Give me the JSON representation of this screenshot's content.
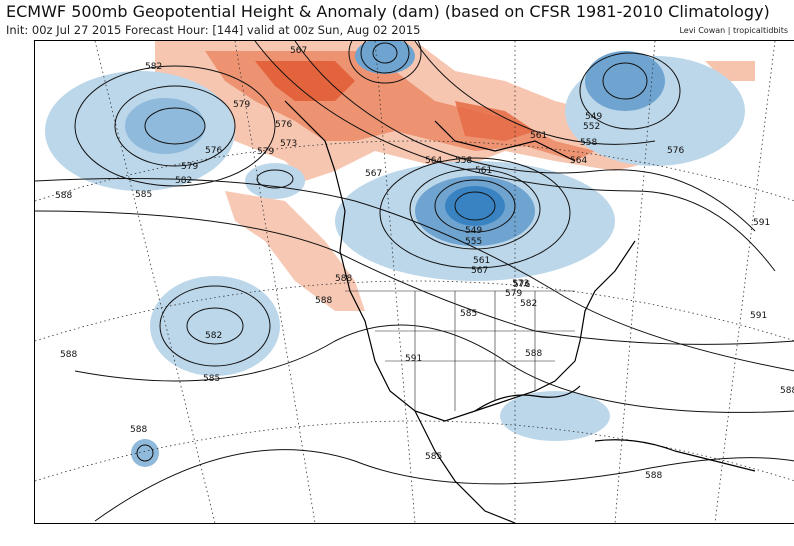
{
  "header": {
    "title": "ECMWF 500mb Geopotential Height & Anomaly (dam) (based on CFSR 1981-2010 Climatology)",
    "subtitle": "Init: 00z Jul 27 2015   Forecast Hour: [144]   valid at 00z Sun, Aug 02 2015",
    "credit": "Levi Cowan | tropicaltidbits"
  },
  "colors": {
    "positive_anomaly": "#e8603c",
    "positive_anomaly_light": "#f6c3ad",
    "negative_anomaly": "#3a83c2",
    "negative_anomaly_light": "#bcd7ea",
    "contour": "#111111",
    "coastline": "#000000"
  },
  "contour_labels": [
    "582",
    "567",
    "579",
    "576",
    "576",
    "579",
    "573",
    "585",
    "579",
    "582",
    "588",
    "588",
    "567",
    "564",
    "561",
    "558",
    "552",
    "549",
    "549",
    "555",
    "561",
    "567",
    "564",
    "558",
    "561",
    "576",
    "591",
    "582",
    "585",
    "588",
    "591",
    "573",
    "576",
    "579",
    "582",
    "588",
    "591",
    "585",
    "588",
    "585",
    "588",
    "588",
    "588"
  ]
}
